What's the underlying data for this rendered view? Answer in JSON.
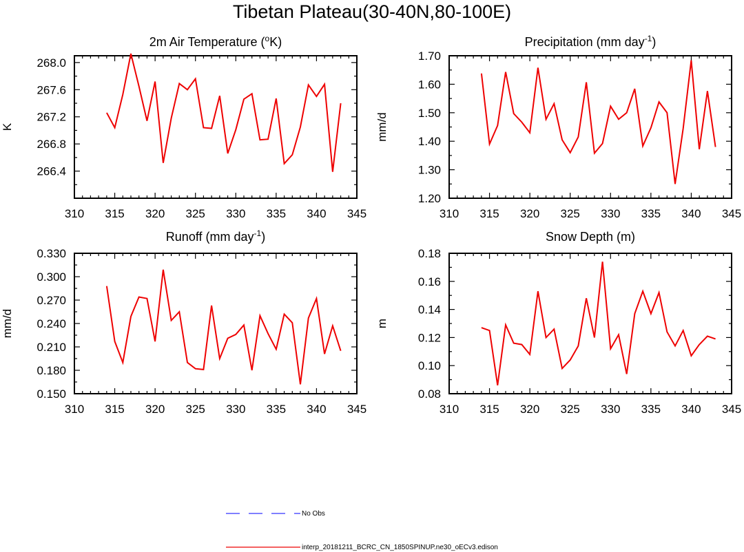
{
  "title": "Tibetan Plateau(30-40N,80-100E)",
  "legend": [
    {
      "label": "No Obs",
      "color": "#3333ff",
      "dash": true
    },
    {
      "label": "interp_20181211_BCRC_CN_1850SPINUP.ne30_oECv3.edison",
      "color": "#ee0000",
      "dash": false
    }
  ],
  "chart_data": [
    {
      "type": "line",
      "title_parts": [
        "2m Air Temperature (",
        "o",
        "K)"
      ],
      "ylabel": "K",
      "xlim": [
        310,
        345
      ],
      "xticks": [
        310,
        315,
        320,
        325,
        330,
        335,
        340,
        345
      ],
      "ylim": [
        266.0,
        268.1
      ],
      "yticks": [
        266.4,
        266.8,
        267.2,
        267.6,
        268.0
      ],
      "ytick_labels": [
        "266.4",
        "266.8",
        "267.2",
        "267.6",
        "268.0"
      ],
      "series": [
        {
          "color": "#ee0000",
          "x": [
            314,
            315,
            316,
            317,
            318,
            319,
            320,
            321,
            322,
            323,
            324,
            325,
            326,
            327,
            328,
            329,
            330,
            331,
            332,
            333,
            334,
            335,
            336,
            337,
            338,
            339,
            340,
            341,
            342,
            343
          ],
          "y": [
            267.26,
            267.04,
            267.53,
            268.13,
            267.65,
            267.14,
            267.72,
            266.52,
            267.18,
            267.69,
            267.6,
            267.76,
            267.04,
            267.03,
            267.51,
            266.66,
            267.01,
            267.46,
            267.54,
            266.86,
            266.87,
            267.47,
            266.51,
            266.64,
            267.05,
            267.67,
            267.5,
            267.68,
            266.39,
            267.4
          ]
        }
      ]
    },
    {
      "type": "line",
      "title_parts": [
        "Precipitation (mm day",
        "-1",
        ")"
      ],
      "ylabel": "mm/d",
      "xlim": [
        310,
        345
      ],
      "xticks": [
        310,
        315,
        320,
        325,
        330,
        335,
        340,
        345
      ],
      "ylim": [
        1.2,
        1.7
      ],
      "yticks": [
        1.2,
        1.3,
        1.4,
        1.5,
        1.6,
        1.7
      ],
      "ytick_labels": [
        "1.20",
        "1.30",
        "1.40",
        "1.50",
        "1.60",
        "1.70"
      ],
      "series": [
        {
          "color": "#ee0000",
          "x": [
            314,
            315,
            316,
            317,
            318,
            319,
            320,
            321,
            322,
            323,
            324,
            325,
            326,
            327,
            328,
            329,
            330,
            331,
            332,
            333,
            334,
            335,
            336,
            337,
            338,
            339,
            340,
            341,
            342,
            343
          ],
          "y": [
            1.638,
            1.39,
            1.455,
            1.643,
            1.497,
            1.467,
            1.43,
            1.658,
            1.477,
            1.532,
            1.405,
            1.36,
            1.415,
            1.607,
            1.358,
            1.392,
            1.523,
            1.477,
            1.5,
            1.584,
            1.383,
            1.447,
            1.538,
            1.5,
            1.25,
            1.445,
            1.684,
            1.372,
            1.576,
            1.38
          ]
        }
      ]
    },
    {
      "type": "line",
      "title_parts": [
        "Runoff (mm day",
        "-1",
        ")"
      ],
      "ylabel": "mm/d",
      "xlim": [
        310,
        345
      ],
      "xticks": [
        310,
        315,
        320,
        325,
        330,
        335,
        340,
        345
      ],
      "ylim": [
        0.15,
        0.33
      ],
      "yticks": [
        0.15,
        0.18,
        0.21,
        0.24,
        0.27,
        0.3,
        0.33
      ],
      "ytick_labels": [
        "0.150",
        "0.180",
        "0.210",
        "0.240",
        "0.270",
        "0.300",
        "0.330"
      ],
      "series": [
        {
          "color": "#ee0000",
          "x": [
            314,
            315,
            316,
            317,
            318,
            319,
            320,
            321,
            322,
            323,
            324,
            325,
            326,
            327,
            328,
            329,
            330,
            331,
            332,
            333,
            334,
            335,
            336,
            337,
            338,
            339,
            340,
            341,
            342,
            343
          ],
          "y": [
            0.288,
            0.217,
            0.19,
            0.249,
            0.274,
            0.272,
            0.217,
            0.309,
            0.244,
            0.255,
            0.19,
            0.182,
            0.181,
            0.263,
            0.195,
            0.221,
            0.226,
            0.238,
            0.18,
            0.25,
            0.227,
            0.207,
            0.252,
            0.241,
            0.162,
            0.247,
            0.272,
            0.201,
            0.237,
            0.205
          ]
        }
      ]
    },
    {
      "type": "line",
      "title_parts": [
        "Snow Depth (m)"
      ],
      "ylabel": "m",
      "xlim": [
        310,
        345
      ],
      "xticks": [
        310,
        315,
        320,
        325,
        330,
        335,
        340,
        345
      ],
      "ylim": [
        0.08,
        0.18
      ],
      "yticks": [
        0.08,
        0.1,
        0.12,
        0.14,
        0.16,
        0.18
      ],
      "ytick_labels": [
        "0.08",
        "0.10",
        "0.12",
        "0.14",
        "0.16",
        "0.18"
      ],
      "series": [
        {
          "color": "#ee0000",
          "x": [
            314,
            315,
            316,
            317,
            318,
            319,
            320,
            321,
            322,
            323,
            324,
            325,
            326,
            327,
            328,
            329,
            330,
            331,
            332,
            333,
            334,
            335,
            336,
            337,
            338,
            339,
            340,
            341,
            342,
            343
          ],
          "y": [
            0.127,
            0.125,
            0.086,
            0.129,
            0.116,
            0.115,
            0.108,
            0.153,
            0.12,
            0.126,
            0.098,
            0.104,
            0.114,
            0.148,
            0.12,
            0.174,
            0.112,
            0.122,
            0.094,
            0.137,
            0.153,
            0.137,
            0.152,
            0.124,
            0.114,
            0.125,
            0.107,
            0.115,
            0.121,
            0.119
          ]
        }
      ]
    }
  ]
}
